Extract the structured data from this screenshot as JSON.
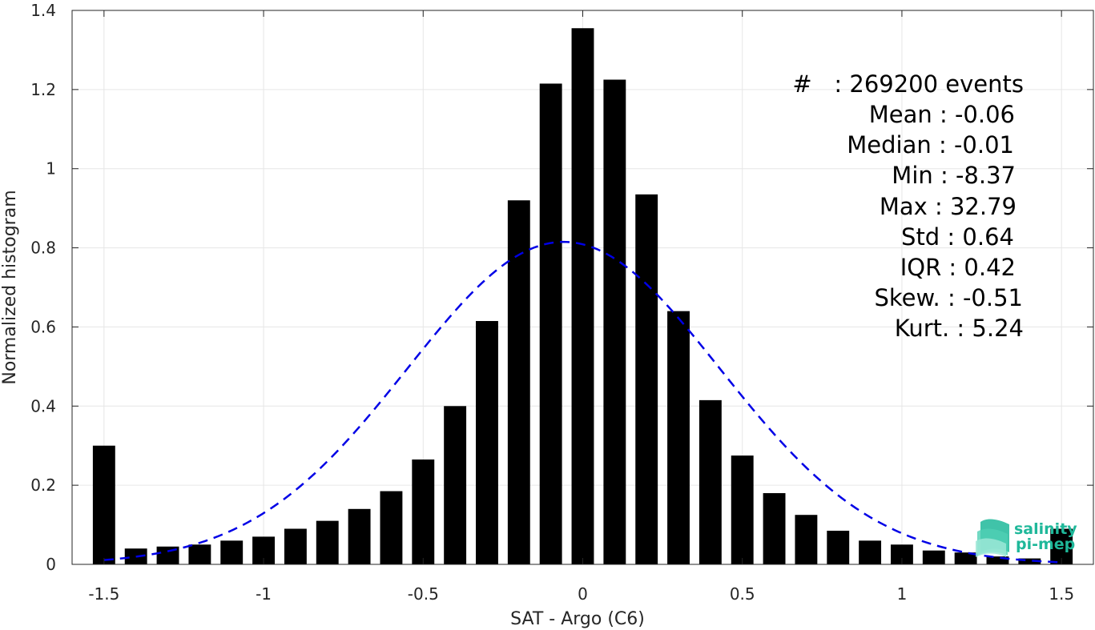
{
  "chart_data": {
    "type": "bar",
    "xlabel": "SAT - Argo (C6)",
    "ylabel": "Normalized histogram",
    "xlim": [
      -1.6,
      1.6
    ],
    "ylim": [
      0,
      1.4
    ],
    "xticks": [
      -1.5,
      -1,
      -0.5,
      0,
      0.5,
      1,
      1.5
    ],
    "xtick_labels": [
      "-1.5",
      "-1",
      "-0.5",
      "0",
      "0.5",
      "1",
      "1.5"
    ],
    "yticks": [
      0,
      0.2,
      0.4,
      0.6,
      0.8,
      1,
      1.2,
      1.4
    ],
    "ytick_labels": [
      "0",
      "0.2",
      "0.4",
      "0.6",
      "0.8",
      "1",
      "1.2",
      "1.4"
    ],
    "grid": true,
    "bar_color": "#000000",
    "fit_color": "#0000e6",
    "bars": {
      "x": [
        -1.5,
        -1.4,
        -1.3,
        -1.2,
        -1.1,
        -1.0,
        -0.9,
        -0.8,
        -0.7,
        -0.6,
        -0.5,
        -0.4,
        -0.3,
        -0.2,
        -0.1,
        0.0,
        0.1,
        0.2,
        0.3,
        0.4,
        0.5,
        0.6,
        0.7,
        0.8,
        0.9,
        1.0,
        1.1,
        1.2,
        1.3,
        1.4,
        1.5
      ],
      "values": [
        0.3,
        0.04,
        0.045,
        0.05,
        0.06,
        0.07,
        0.09,
        0.11,
        0.14,
        0.185,
        0.265,
        0.4,
        0.615,
        0.92,
        1.215,
        1.355,
        1.225,
        0.935,
        0.64,
        0.415,
        0.275,
        0.18,
        0.125,
        0.085,
        0.06,
        0.05,
        0.035,
        0.03,
        0.02,
        0.015,
        0.09
      ]
    },
    "fit": {
      "style": "dashed",
      "distribution": "normal",
      "mean": -0.06,
      "std": 0.49,
      "peak": 0.815,
      "x_range": [
        -1.5,
        1.5
      ]
    },
    "annotations": {
      "count": "#   : 269200 events",
      "lines": [
        "Mean : -0.06",
        "Median : -0.01",
        "Min : -8.37",
        "Max : 32.79",
        "Std : 0.64",
        "IQR : 0.42",
        "Skew. : -0.51",
        "Kurt. : 5.24"
      ]
    }
  },
  "logo": {
    "line1": "salinity",
    "line2": "pi-mep",
    "color": "#1fb89a"
  }
}
